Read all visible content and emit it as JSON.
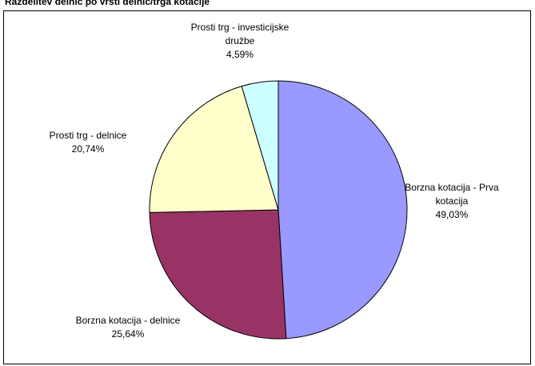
{
  "chart_data": {
    "type": "pie",
    "title": "Razdelitev delnic po vrsti delnic/trga kotacije",
    "categories": [
      "Borzna kotacija - Prva kotacija",
      "Borzna kotacija - delnice",
      "Prosti trg - delnice",
      "Prosti trg - investicijske družbe"
    ],
    "values": [
      49.03,
      25.64,
      20.74,
      4.59
    ],
    "value_labels": [
      "49,03%",
      "25,64%",
      "20,74%",
      "4,59%"
    ],
    "colors": [
      "#9999ff",
      "#993366",
      "#ffffcc",
      "#ccffff"
    ]
  }
}
